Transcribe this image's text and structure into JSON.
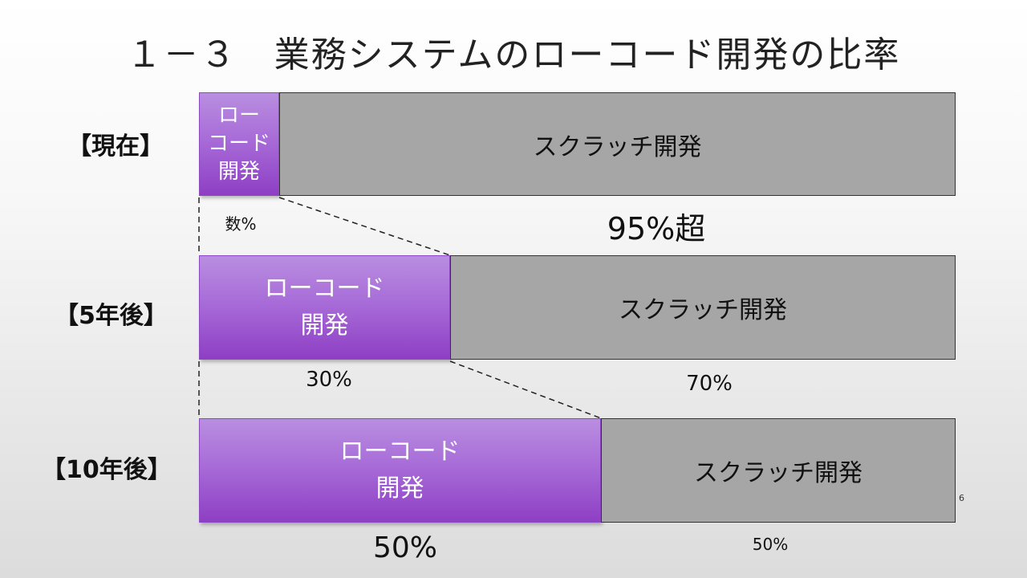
{
  "slide": {
    "title": "１－３　業務システムのローコード開発の比率",
    "page_number": "6"
  },
  "rows": [
    {
      "label": "【現在】",
      "low": {
        "text": "ロー\nコード\n開発",
        "percent_label": "数%"
      },
      "scratch": {
        "text": "スクラッチ開発",
        "percent_label": "95%超"
      }
    },
    {
      "label": "【5年後】",
      "low": {
        "text": "ローコード\n開発",
        "percent_label": "30%"
      },
      "scratch": {
        "text": "スクラッチ開発",
        "percent_label": "70%"
      }
    },
    {
      "label": "【10年後】",
      "low": {
        "text": "ローコード\n開発",
        "percent_label": "50%"
      },
      "scratch": {
        "text": "スクラッチ開発",
        "percent_label": "50%"
      }
    }
  ],
  "colors": {
    "low_code": "#a86cd8",
    "scratch": "#a6a6a6"
  }
}
